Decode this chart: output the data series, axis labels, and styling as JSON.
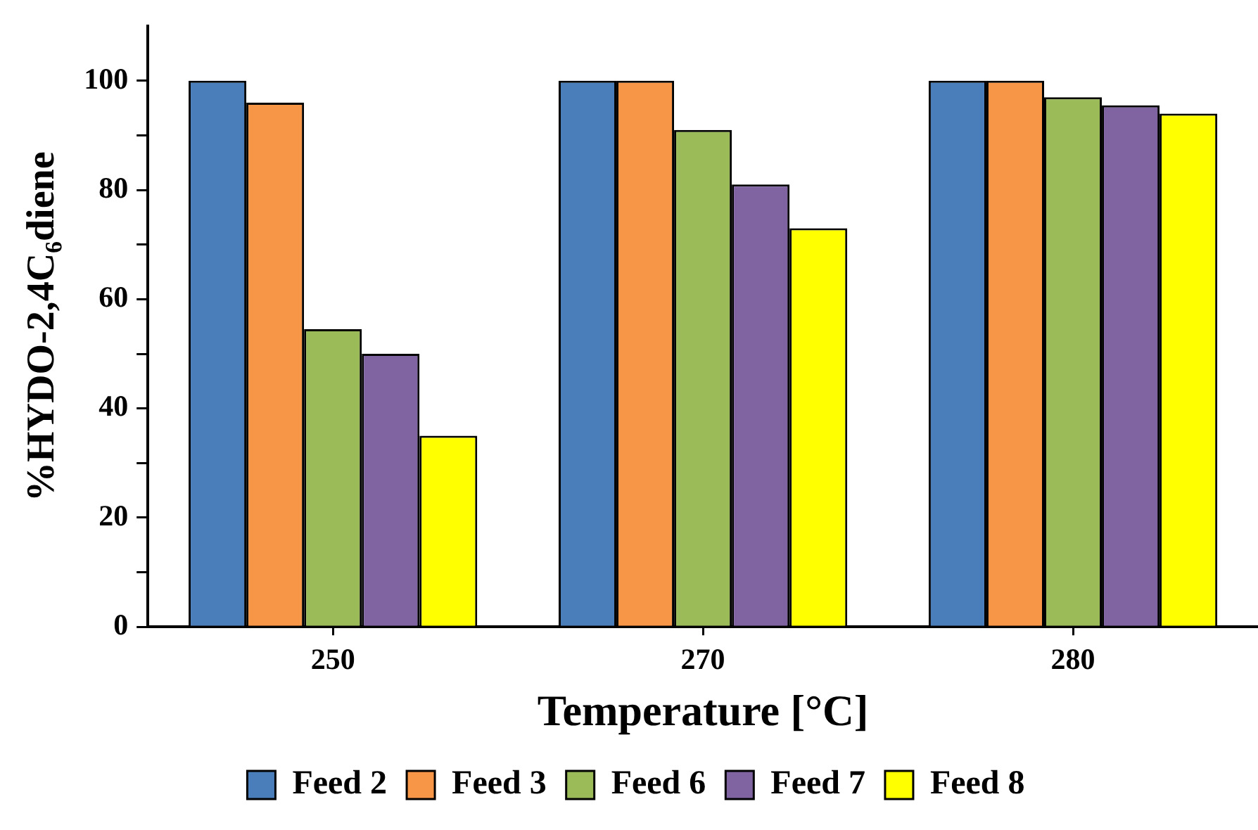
{
  "chart_data": {
    "type": "bar",
    "xlabel": "Temperature [°C]",
    "ylabel": "%HYDO-2,4C₆diene",
    "categories": [
      "250",
      "270",
      "280"
    ],
    "series": [
      {
        "name": "Feed 2",
        "color": "#4a7ebb",
        "values": [
          100,
          100,
          100
        ]
      },
      {
        "name": "Feed 3",
        "color": "#f79646",
        "values": [
          96,
          100,
          100
        ]
      },
      {
        "name": "Feed 6",
        "color": "#9bbb59",
        "values": [
          54.5,
          91,
          97
        ]
      },
      {
        "name": "Feed 7",
        "color": "#8064a2",
        "values": [
          50,
          81,
          95.5
        ]
      },
      {
        "name": "Feed 8",
        "color": "#ffff00",
        "values": [
          35,
          73,
          94
        ]
      }
    ],
    "ylim": [
      0,
      110
    ],
    "yticks": [
      0,
      {
        "value": 10,
        "label": null
      },
      20,
      {
        "value": 30,
        "label": null
      },
      40,
      {
        "value": 50,
        "label": null
      },
      60,
      {
        "value": 70,
        "label": null
      },
      80,
      {
        "value": 90,
        "label": null
      },
      100
    ],
    "grid": false,
    "legend": "bottom"
  }
}
